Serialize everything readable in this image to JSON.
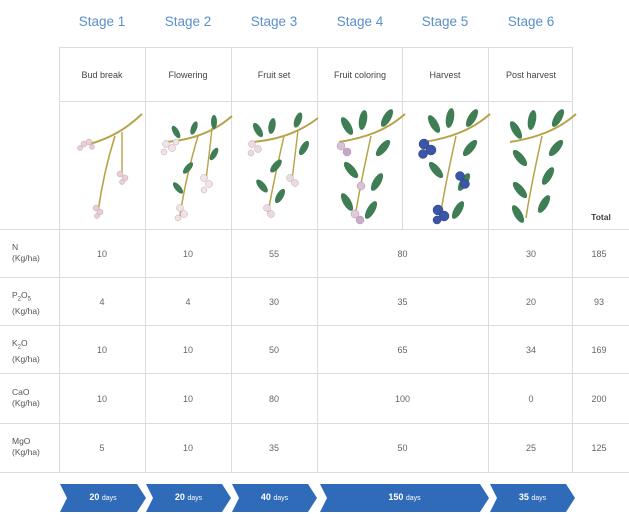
{
  "stages": [
    "Stage 1",
    "Stage 2",
    "Stage 3",
    "Stage 4",
    "Stage 5",
    "Stage 6"
  ],
  "phases": [
    "Bud break",
    "Flowering",
    "Fruit set",
    "Fruit coloring",
    "Harvest",
    "Post harvest"
  ],
  "total_label": "Total",
  "rows": [
    {
      "label_top": "N",
      "label_sub": "",
      "unit": "(Kg/ha)",
      "values": [
        "10",
        "10",
        "55",
        "80",
        "30"
      ],
      "total": "185"
    },
    {
      "label_top": "P",
      "label_sub": "2",
      "label_mid": "O",
      "label_sub2": "5",
      "unit": "(Kg/ha)",
      "values": [
        "4",
        "4",
        "30",
        "35",
        "20"
      ],
      "total": "93"
    },
    {
      "label_top": "K",
      "label_sub": "2",
      "label_mid": "O",
      "unit": "(Kg/ha)",
      "values": [
        "10",
        "10",
        "50",
        "65",
        "34"
      ],
      "total": "169"
    },
    {
      "label_top": "CaO",
      "label_sub": "",
      "unit": "(Kg/ha)",
      "values": [
        "10",
        "10",
        "80",
        "100",
        "0"
      ],
      "total": "200"
    },
    {
      "label_top": "MgO",
      "label_sub": "",
      "unit": "(Kg/ha)",
      "values": [
        "5",
        "10",
        "35",
        "50",
        "25"
      ],
      "total": "125"
    }
  ],
  "durations": [
    {
      "value": "20",
      "unit": "days"
    },
    {
      "value": "20",
      "unit": "days"
    },
    {
      "value": "40",
      "unit": "days"
    },
    {
      "value": "150",
      "unit": "days"
    },
    {
      "value": "35",
      "unit": "days"
    }
  ],
  "colors": {
    "stage_title": "#5b8fc9",
    "arrow": "#2f6bb8",
    "leaf": "#3f7d55",
    "stem": "#b7a34a",
    "blossom": "#e8cfd6",
    "berry": "#3b56a8"
  }
}
